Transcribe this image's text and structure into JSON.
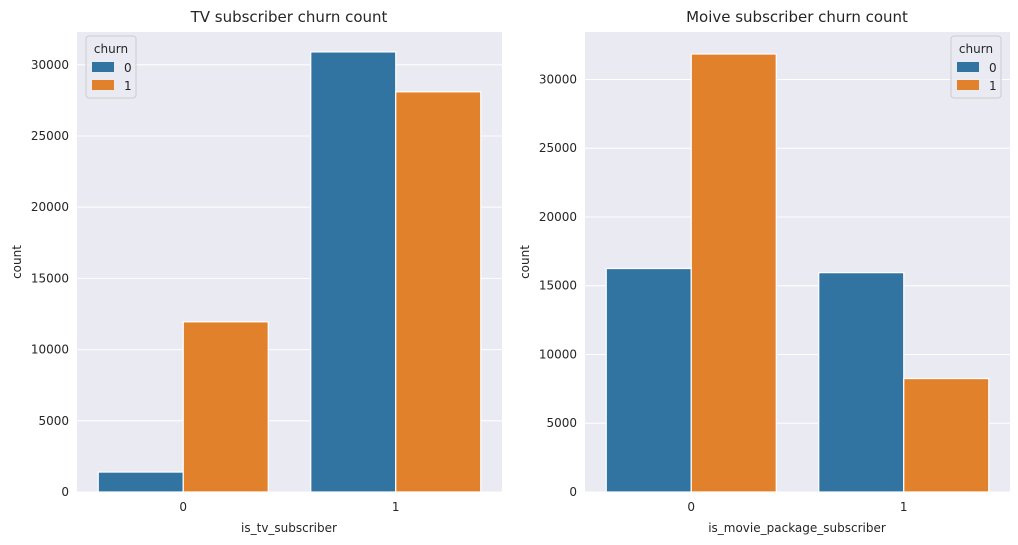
{
  "chart_data": [
    {
      "type": "bar",
      "title": "TV subscriber churn count",
      "xlabel": "is_tv_subscriber",
      "ylabel": "count",
      "categories": [
        "0",
        "1"
      ],
      "series": [
        {
          "name": "0",
          "values": [
            1400,
            30900
          ],
          "color": "#3274a1"
        },
        {
          "name": "1",
          "values": [
            11950,
            28100
          ],
          "color": "#e1812c"
        }
      ],
      "ylim": [
        0,
        32300
      ],
      "yticks": [
        0,
        5000,
        10000,
        15000,
        20000,
        25000,
        30000
      ],
      "legend": {
        "title": "churn",
        "placement": "top-left"
      },
      "grid": true
    },
    {
      "type": "bar",
      "title": "Moive subscriber churn count",
      "xlabel": "is_movie_package_subscriber",
      "ylabel": "count",
      "categories": [
        "0",
        "1"
      ],
      "series": [
        {
          "name": "0",
          "values": [
            16250,
            15950
          ],
          "color": "#3274a1"
        },
        {
          "name": "1",
          "values": [
            31850,
            8250
          ],
          "color": "#e1812c"
        }
      ],
      "ylim": [
        0,
        33450
      ],
      "yticks": [
        0,
        5000,
        10000,
        15000,
        20000,
        25000,
        30000
      ],
      "legend": {
        "title": "churn",
        "placement": "top-right"
      },
      "grid": true
    }
  ]
}
